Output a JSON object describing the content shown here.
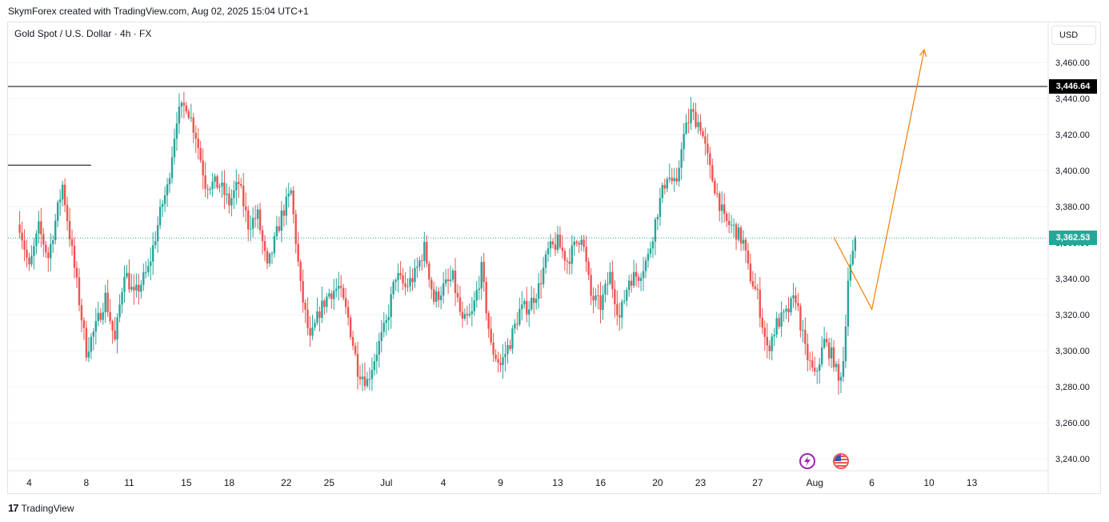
{
  "header": {
    "credit": "SkymForex created with TradingView.com, Aug 02, 2025 15:04 UTC+1"
  },
  "symbol_title": "Gold Spot / U.S. Dollar · 4h · FX",
  "currency_button": "USD",
  "footer": {
    "logo": "TradingView",
    "logo_mark": "17"
  },
  "colors": {
    "up": "#26a69a",
    "down": "#ef5350",
    "projection": "#f57c00",
    "level_line": "#000000",
    "current_price": "#26a69a",
    "grid": "#f0f3fa"
  },
  "icons": {
    "event_1": "lightning-icon",
    "event_2": "us-flag-icon"
  },
  "chart_data": {
    "type": "candlestick",
    "title": "Gold Spot / U.S. Dollar · 4h · FX",
    "ylim": [
      3235,
      3490
    ],
    "y_ticks": [
      3240,
      3260,
      3280,
      3300,
      3320,
      3340,
      3360,
      3380,
      3400,
      3420,
      3440,
      3460
    ],
    "y_tick_labels": [
      "3,240.00",
      "3,260.00",
      "3,280.00",
      "3,300.00",
      "3,320.00",
      "3,340.00",
      "3,360.00",
      "3,380.00",
      "3,400.00",
      "3,420.00",
      "3,440.00",
      "3,460.00"
    ],
    "x_ticks": [
      {
        "label": "4",
        "bar": 4
      },
      {
        "label": "8",
        "bar": 28
      },
      {
        "label": "11",
        "bar": 46
      },
      {
        "label": "15",
        "bar": 70
      },
      {
        "label": "18",
        "bar": 88
      },
      {
        "label": "22",
        "bar": 112
      },
      {
        "label": "25",
        "bar": 130
      },
      {
        "label": "Jul",
        "bar": 154
      },
      {
        "label": "4",
        "bar": 178
      },
      {
        "label": "9",
        "bar": 202
      },
      {
        "label": "13",
        "bar": 226
      },
      {
        "label": "16",
        "bar": 244
      },
      {
        "label": "20",
        "bar": 268
      },
      {
        "label": "23",
        "bar": 286
      },
      {
        "label": "27",
        "bar": 310
      },
      {
        "label": "Aug",
        "bar": 334
      },
      {
        "label": "6",
        "bar": 358
      },
      {
        "label": "10",
        "bar": 382
      },
      {
        "label": "13",
        "bar": 400
      }
    ],
    "bars_visible_range": [
      -4,
      406
    ],
    "levels": [
      {
        "label": "3,446.64",
        "value": 3446.64,
        "style": "solid-full"
      },
      {
        "label": "",
        "value": 3403,
        "style": "segment",
        "bar_from": -4,
        "bar_to": 30
      }
    ],
    "current_price": {
      "label": "3,362.53",
      "value": 3362.53
    },
    "projection": [
      {
        "bar": 342,
        "value": 3363
      },
      {
        "bar": 358,
        "value": 3323
      },
      {
        "bar": 380,
        "value": 3467
      }
    ],
    "events": [
      {
        "icon": "lightning-icon",
        "bar": 331
      },
      {
        "icon": "us-flag-icon",
        "bar": 345
      }
    ],
    "waypoints": [
      [
        0,
        3370
      ],
      [
        4,
        3345
      ],
      [
        8,
        3368
      ],
      [
        12,
        3352
      ],
      [
        18,
        3392
      ],
      [
        22,
        3355
      ],
      [
        28,
        3300
      ],
      [
        32,
        3313
      ],
      [
        36,
        3330
      ],
      [
        40,
        3305
      ],
      [
        44,
        3345
      ],
      [
        48,
        3330
      ],
      [
        54,
        3345
      ],
      [
        60,
        3382
      ],
      [
        62,
        3390
      ],
      [
        66,
        3430
      ],
      [
        70,
        3437
      ],
      [
        74,
        3420
      ],
      [
        78,
        3393
      ],
      [
        84,
        3392
      ],
      [
        88,
        3382
      ],
      [
        92,
        3393
      ],
      [
        96,
        3370
      ],
      [
        100,
        3375
      ],
      [
        104,
        3345
      ],
      [
        110,
        3375
      ],
      [
        114,
        3388
      ],
      [
        118,
        3335
      ],
      [
        122,
        3305
      ],
      [
        126,
        3322
      ],
      [
        130,
        3332
      ],
      [
        134,
        3335
      ],
      [
        138,
        3318
      ],
      [
        142,
        3290
      ],
      [
        146,
        3283
      ],
      [
        150,
        3300
      ],
      [
        154,
        3315
      ],
      [
        158,
        3342
      ],
      [
        162,
        3335
      ],
      [
        166,
        3342
      ],
      [
        170,
        3357
      ],
      [
        174,
        3328
      ],
      [
        178,
        3335
      ],
      [
        182,
        3340
      ],
      [
        186,
        3315
      ],
      [
        190,
        3320
      ],
      [
        194,
        3345
      ],
      [
        198,
        3302
      ],
      [
        202,
        3292
      ],
      [
        206,
        3305
      ],
      [
        210,
        3322
      ],
      [
        214,
        3325
      ],
      [
        218,
        3335
      ],
      [
        222,
        3355
      ],
      [
        226,
        3360
      ],
      [
        230,
        3350
      ],
      [
        236,
        3365
      ],
      [
        240,
        3330
      ],
      [
        244,
        3325
      ],
      [
        248,
        3342
      ],
      [
        252,
        3318
      ],
      [
        256,
        3340
      ],
      [
        260,
        3342
      ],
      [
        264,
        3352
      ],
      [
        268,
        3378
      ],
      [
        272,
        3398
      ],
      [
        276,
        3390
      ],
      [
        278,
        3415
      ],
      [
        282,
        3432
      ],
      [
        286,
        3425
      ],
      [
        290,
        3400
      ],
      [
        294,
        3382
      ],
      [
        296,
        3372
      ],
      [
        300,
        3368
      ],
      [
        304,
        3360
      ],
      [
        306,
        3345
      ],
      [
        310,
        3330
      ],
      [
        314,
        3300
      ],
      [
        318,
        3315
      ],
      [
        322,
        3320
      ],
      [
        326,
        3330
      ],
      [
        330,
        3300
      ],
      [
        334,
        3285
      ],
      [
        338,
        3305
      ],
      [
        342,
        3295
      ],
      [
        344,
        3282
      ],
      [
        346,
        3295
      ],
      [
        348,
        3340
      ],
      [
        350,
        3352
      ],
      [
        351,
        3362.5
      ]
    ]
  }
}
